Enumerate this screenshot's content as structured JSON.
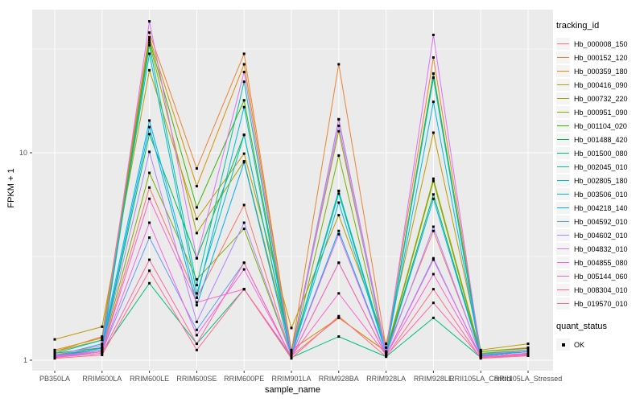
{
  "style": {
    "panel_bg": "#EBEBEB",
    "grid_color": "#FFFFFF",
    "tick_color": "#333333",
    "tick_text_color": "#4D4D4D",
    "text_color": "#000000",
    "legend_key_bg": "#F4F4F4",
    "point_color": "#000000"
  },
  "chart_data": {
    "type": "line",
    "title": "",
    "xlabel": "sample_name",
    "ylabel": "FPKM + 1",
    "y_scale": "log10",
    "ylim": [
      0.89,
      47.6
    ],
    "grid": true,
    "legend_position": "right",
    "y_ticks": [
      {
        "value": 10,
        "label": "10"
      },
      {
        "value": 1,
        "label": "1"
      }
    ],
    "y_minor_gridlines": [
      3.162,
      31.62
    ],
    "categories": [
      "PB350LA",
      "RRIM600LA",
      "RRIM600LE",
      "RRIM600SE",
      "RRIM600PE",
      "RRIM901LA",
      "RRIM928BA",
      "RRIM928LA",
      "RRIM928LE",
      "RRII105LA_Control",
      "RRII105LA_Stressed"
    ],
    "legend": {
      "title": "tracking_id"
    },
    "legend2": {
      "title": "quant_status",
      "items": [
        {
          "label": "OK",
          "marker": "black-square"
        }
      ]
    },
    "point_marker": "black-square",
    "series": [
      {
        "name": "Hb_000008_150",
        "color": "#F8766D",
        "values": [
          1.05,
          1.1,
          6.8,
          2.0,
          5.6,
          1.05,
          1.6,
          1.1,
          4.2,
          1.05,
          1.1
        ]
      },
      {
        "name": "Hb_000152_120",
        "color": "#EA8331",
        "values": [
          1.1,
          1.3,
          38,
          8.4,
          30,
          1.1,
          26.7,
          1.15,
          28.8,
          1.1,
          1.15
        ]
      },
      {
        "name": "Hb_000359_180",
        "color": "#D89000",
        "values": [
          1.12,
          1.28,
          36,
          6.9,
          26.7,
          1.12,
          1.6,
          1.1,
          24.1,
          1.05,
          1.12
        ]
      },
      {
        "name": "Hb_000416_090",
        "color": "#C09B00",
        "values": [
          1.26,
          1.45,
          25,
          4.8,
          9.9,
          1.43,
          5.0,
          1.2,
          12.5,
          1.12,
          1.2
        ]
      },
      {
        "name": "Hb_000732_220",
        "color": "#A3A500",
        "values": [
          1.1,
          1.25,
          34,
          4.1,
          9.1,
          1.1,
          12.7,
          1.1,
          7.5,
          1.08,
          1.12
        ]
      },
      {
        "name": "Hb_000951_090",
        "color": "#7CAE00",
        "values": [
          1.05,
          1.12,
          8.0,
          2.45,
          4.3,
          1.05,
          9.7,
          1.08,
          7.3,
          1.05,
          1.1
        ]
      },
      {
        "name": "Hb_001104_020",
        "color": "#39B600",
        "values": [
          1.08,
          1.15,
          35,
          5.45,
          17.9,
          1.08,
          14.5,
          1.1,
          24.1,
          1.1,
          1.14
        ]
      },
      {
        "name": "Hb_001488_420",
        "color": "#00BB4E",
        "values": [
          1.05,
          1.12,
          12.3,
          3.1,
          12.2,
          1.06,
          6.55,
          1.08,
          6.3,
          1.05,
          1.1
        ]
      },
      {
        "name": "Hb_001500_080",
        "color": "#00BF7D",
        "values": [
          1.03,
          1.1,
          2.35,
          1.2,
          2.2,
          1.03,
          1.3,
          1.04,
          1.6,
          1.03,
          1.06
        ]
      },
      {
        "name": "Hb_002045_010",
        "color": "#00C1A3",
        "values": [
          1.06,
          1.14,
          33,
          2.3,
          22,
          1.07,
          6.35,
          1.08,
          23,
          1.06,
          1.1
        ]
      },
      {
        "name": "Hb_002805_180",
        "color": "#00BFC4",
        "values": [
          1.08,
          1.25,
          30,
          2.1,
          12.2,
          1.08,
          6.55,
          1.1,
          23,
          1.07,
          1.12
        ]
      },
      {
        "name": "Hb_003506_010",
        "color": "#00B8E7",
        "values": [
          1.05,
          1.2,
          14.3,
          2.0,
          16.6,
          1.05,
          5.75,
          1.08,
          17.6,
          1.05,
          1.1
        ]
      },
      {
        "name": "Hb_004218_140",
        "color": "#00ACFC",
        "values": [
          1.04,
          1.15,
          13.3,
          1.84,
          9.0,
          1.04,
          4.2,
          1.06,
          6.0,
          1.04,
          1.08
        ]
      },
      {
        "name": "Hb_004592_010",
        "color": "#619CFF",
        "values": [
          1.03,
          1.1,
          3.9,
          1.4,
          2.95,
          1.03,
          2.95,
          1.05,
          3.1,
          1.03,
          1.06
        ]
      },
      {
        "name": "Hb_004602_010",
        "color": "#AE87FF",
        "values": [
          1.04,
          1.12,
          10.1,
          1.53,
          4.6,
          1.05,
          13.5,
          1.06,
          4.4,
          1.04,
          1.08
        ]
      },
      {
        "name": "Hb_004832_010",
        "color": "#DB72FB",
        "values": [
          1.06,
          1.18,
          43,
          3.1,
          24.5,
          1.06,
          14.5,
          1.1,
          37,
          1.06,
          1.12
        ]
      },
      {
        "name": "Hb_004855_080",
        "color": "#F564E3",
        "values": [
          1.04,
          1.1,
          4.6,
          1.32,
          2.74,
          1.04,
          4.05,
          1.05,
          3.05,
          1.04,
          1.07
        ]
      },
      {
        "name": "Hb_005144_060",
        "color": "#FF61CC",
        "values": [
          1.05,
          1.1,
          6.0,
          1.9,
          2.2,
          1.05,
          2.1,
          1.06,
          2.6,
          1.04,
          1.08
        ]
      },
      {
        "name": "Hb_008304_010",
        "color": "#FF65A9",
        "values": [
          1.03,
          1.08,
          3.05,
          1.2,
          2.95,
          1.03,
          2.95,
          1.05,
          1.89,
          1.03,
          1.06
        ]
      },
      {
        "name": "Hb_019570_010",
        "color": "#FF6C8F",
        "values": [
          1.02,
          1.06,
          2.7,
          1.12,
          2.2,
          1.02,
          1.63,
          1.04,
          2.2,
          1.02,
          1.05
        ]
      }
    ]
  }
}
